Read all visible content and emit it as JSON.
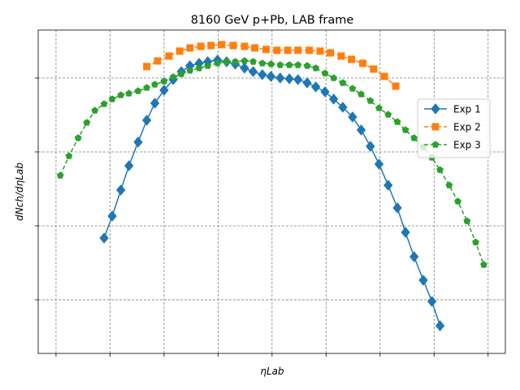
{
  "chart_data": {
    "type": "line",
    "title": "8160 GeV p+Pb, LAB frame",
    "xlabel": "ηLab",
    "ylabel": "dNch/dηLab",
    "yscale": "log",
    "grid": true,
    "legend": "right",
    "xlim": [
      -4.33,
      4.32
    ],
    "xticks": [
      -4,
      -3,
      -2,
      -1,
      0,
      1,
      2,
      3,
      4
    ],
    "ylim": [
      0.00188,
      44.5
    ],
    "yticks": [
      0.01,
      0.1,
      1,
      10
    ],
    "series": [
      {
        "name": "Exp 1",
        "color": "#1f77b4",
        "marker": "diamond",
        "dash": false,
        "x": [
          -3.11,
          -2.96,
          -2.8,
          -2.65,
          -2.48,
          -2.32,
          -2.17,
          -2.0,
          -1.83,
          -1.68,
          -1.52,
          -1.35,
          -1.19,
          -1.01,
          -0.84,
          -0.68,
          -0.51,
          -0.35,
          -0.18,
          -0.02,
          0.15,
          0.32,
          0.48,
          0.65,
          0.81,
          0.98,
          1.14,
          1.31,
          1.49,
          1.65,
          1.82,
          1.98,
          2.15,
          2.32,
          2.47,
          2.63,
          2.8,
          2.96,
          3.11
        ],
        "values": [
          0.0684,
          0.1355,
          0.305,
          0.65,
          1.36,
          2.68,
          4.56,
          6.84,
          9.5,
          12.2,
          14.6,
          15.8,
          16.6,
          17.5,
          16.6,
          15.4,
          13.6,
          12.2,
          11.1,
          10.5,
          10,
          9.75,
          9.5,
          8.6,
          7.57,
          6.5,
          5.18,
          4.02,
          2.97,
          1.98,
          1.19,
          0.684,
          0.354,
          0.175,
          0.0817,
          0.0382,
          0.0184,
          0.0095,
          0.00445
        ]
      },
      {
        "name": "Exp 2",
        "color": "#ff7f0e",
        "marker": "square",
        "dash": true,
        "x": [
          -2.32,
          -2.12,
          -1.91,
          -1.71,
          -1.52,
          -1.32,
          -1.13,
          -0.93,
          -0.72,
          -0.51,
          -0.32,
          -0.11,
          0.09,
          0.29,
          0.48,
          0.69,
          0.89,
          1.08,
          1.28,
          1.47,
          1.68,
          1.88,
          2.08,
          2.29
        ],
        "values": [
          14.3,
          17.0,
          19.8,
          23.1,
          25.5,
          26.8,
          27.5,
          28.3,
          27.5,
          26.8,
          25.5,
          24.3,
          23.7,
          23.7,
          23.7,
          23.7,
          23.1,
          21.9,
          19.8,
          17.9,
          15.8,
          13.2,
          10.5,
          7.76
        ]
      },
      {
        "name": "Exp 3",
        "color": "#2ca02c",
        "marker": "pentagon",
        "dash": true,
        "x": [
          -3.92,
          -3.76,
          -3.59,
          -3.43,
          -3.28,
          -3.11,
          -2.96,
          -2.8,
          -2.65,
          -2.48,
          -2.32,
          -2.17,
          -2.0,
          -1.83,
          -1.68,
          -1.52,
          -1.35,
          -1.19,
          -1.01,
          -0.84,
          -0.68,
          -0.51,
          -0.35,
          -0.18,
          -0.02,
          0.15,
          0.32,
          0.48,
          0.65,
          0.81,
          0.98,
          1.14,
          1.31,
          1.49,
          1.65,
          1.82,
          1.98,
          2.15,
          2.32,
          2.47,
          2.63,
          2.8,
          2.96,
          3.11,
          3.28,
          3.44,
          3.61,
          3.77,
          3.92
        ],
        "values": [
          0.48,
          0.88,
          1.54,
          2.49,
          3.63,
          4.45,
          5.18,
          5.87,
          6.18,
          6.67,
          7.38,
          8.17,
          9.04,
          10.3,
          11.3,
          12.6,
          13.6,
          14.6,
          15.8,
          16.6,
          16.6,
          17.0,
          16.6,
          15.8,
          15.4,
          15.0,
          15.0,
          15.0,
          14.6,
          13.6,
          11.6,
          10,
          8.6,
          7.2,
          6.03,
          4.92,
          3.92,
          3.2,
          2.55,
          1.98,
          1.54,
          1.16,
          0.84,
          0.57,
          0.354,
          0.214,
          0.116,
          0.06,
          0.0297
        ]
      }
    ]
  }
}
